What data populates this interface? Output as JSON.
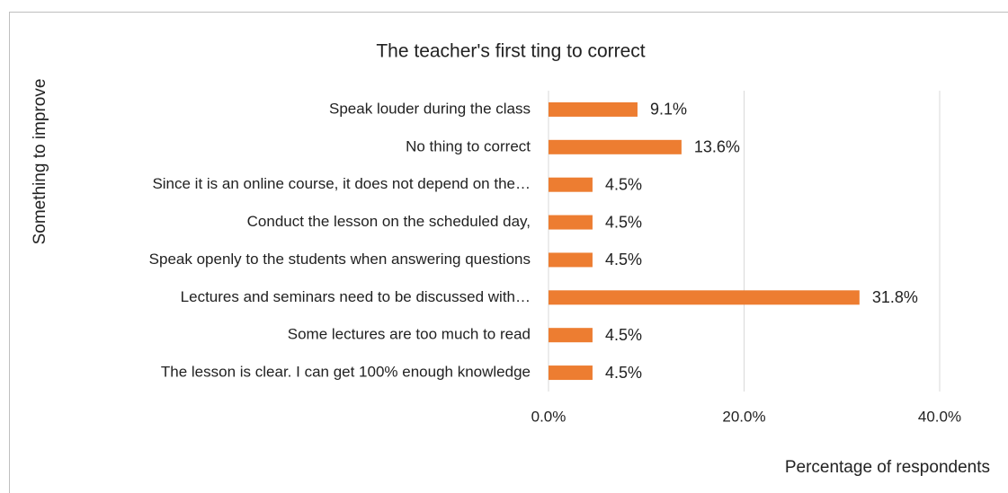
{
  "chart_data": {
    "type": "bar",
    "orientation": "horizontal",
    "title": "The teacher's first ting to correct",
    "x_label": "Percentage of respondents",
    "y_label": "Something to improve",
    "categories": [
      "Speak louder during the class",
      "No thing to correct",
      "Since it is an online course, it does not depend on the…",
      "Conduct the lesson on the scheduled day,",
      "Speak openly to the students when answering questions",
      "Lectures and seminars need to be discussed with…",
      "Some lectures are too much to read",
      "The lesson is clear. I can get 100% enough knowledge"
    ],
    "values": [
      9.1,
      13.6,
      4.5,
      4.5,
      4.5,
      31.8,
      4.5,
      4.5
    ],
    "value_labels": [
      "9.1%",
      "13.6%",
      "4.5%",
      "4.5%",
      "4.5%",
      "31.8%",
      "4.5%",
      "4.5%"
    ],
    "color": "#ed7d31",
    "xlim": [
      0,
      40
    ],
    "xticks": [
      {
        "value": 0,
        "label": "0.0%"
      },
      {
        "value": 20,
        "label": "20.0%"
      },
      {
        "value": 40,
        "label": "40.0%"
      }
    ],
    "grid": true
  }
}
